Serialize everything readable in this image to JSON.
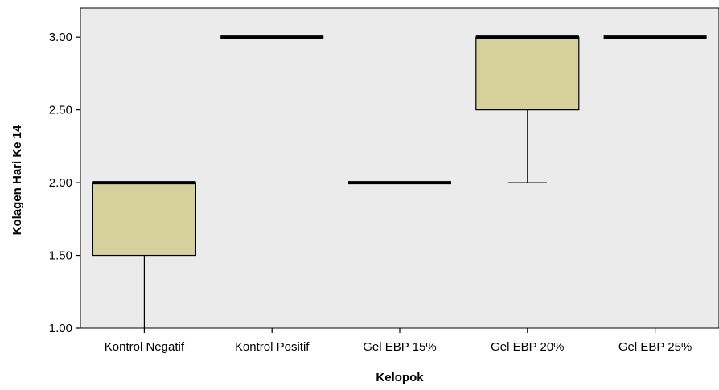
{
  "chart_data": {
    "type": "boxplot",
    "title": "",
    "xlabel": "Kelopok",
    "ylabel": "Kolagen Hari Ke 14",
    "ylim": [
      1.0,
      3.2
    ],
    "yticks": [
      1.0,
      1.5,
      2.0,
      2.5,
      3.0
    ],
    "ytick_labels": [
      "1.00",
      "1.50",
      "2.00",
      "2.50",
      "3.00"
    ],
    "categories": [
      "Kontrol Negatif",
      "Kontrol Positif",
      "Gel EBP 15%",
      "Gel EBP 20%",
      "Gel EBP 25%"
    ],
    "boxes": [
      {
        "min": 1.0,
        "q1": 1.5,
        "median": 2.0,
        "q3": 2.0,
        "max": 2.0
      },
      {
        "min": 3.0,
        "q1": 3.0,
        "median": 3.0,
        "q3": 3.0,
        "max": 3.0
      },
      {
        "min": 2.0,
        "q1": 2.0,
        "median": 2.0,
        "q3": 2.0,
        "max": 2.0
      },
      {
        "min": 2.0,
        "q1": 2.5,
        "median": 3.0,
        "q3": 3.0,
        "max": 3.0
      },
      {
        "min": 3.0,
        "q1": 3.0,
        "median": 3.0,
        "q3": 3.0,
        "max": 3.0
      }
    ],
    "grid": false,
    "legend": "none",
    "colors": {
      "plot_background": "#ebebeb",
      "box_fill": "#d6d09c",
      "line": "#000000"
    }
  }
}
